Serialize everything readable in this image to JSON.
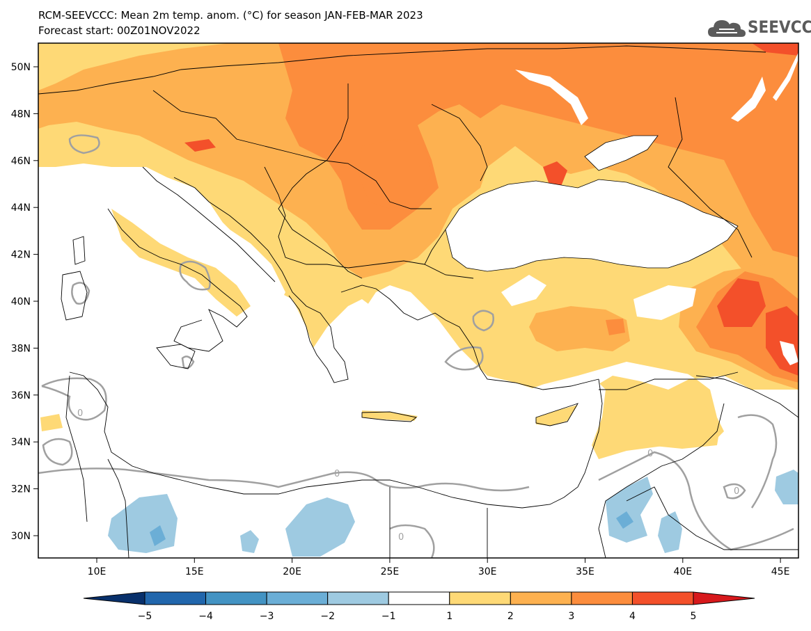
{
  "title": "RCM-SEEVCCC: Mean 2m temp. anom. (°C) for season JAN-FEB-MAR 2023",
  "subtitle": "Forecast start: 00Z01NOV2022",
  "logo": {
    "text": "SEEVCCC",
    "icon": "cloud-logo-icon"
  },
  "map": {
    "lat_labels": [
      "50N",
      "48N",
      "46N",
      "44N",
      "42N",
      "40N",
      "38N",
      "36N",
      "34N",
      "32N",
      "30N"
    ],
    "lon_labels": [
      "10E",
      "15E",
      "20E",
      "25E",
      "30E",
      "35E",
      "40E",
      "45E"
    ],
    "contour_label": "0",
    "colors": {
      "sea": "#ffffff",
      "land_neutral": "#ffffff",
      "warm1": "#fed976",
      "warm2": "#fdb150",
      "warm3": "#fc8d3d",
      "warm4": "#f3502a",
      "cool1": "#9ecae1",
      "cool2": "#6baed6",
      "contour": "#a0a0a0",
      "border": "#000000"
    }
  },
  "colorbar": {
    "labels": [
      "−5",
      "−4",
      "−3",
      "−2",
      "−1",
      "1",
      "2",
      "3",
      "4",
      "5"
    ],
    "colors": [
      "#08306b",
      "#2166ac",
      "#4393c3",
      "#6baed6",
      "#9ecae1",
      "#ffffff",
      "#fed976",
      "#fdb150",
      "#fc8d3d",
      "#f3502a",
      "#d7191c"
    ]
  }
}
